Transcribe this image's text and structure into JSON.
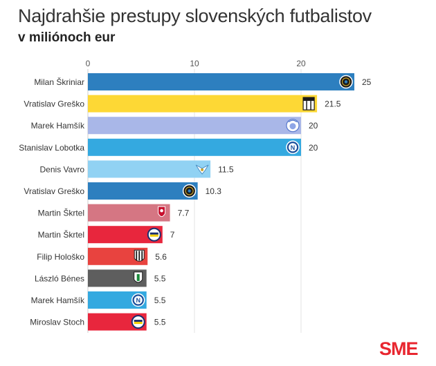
{
  "title": "Najdrahšie prestupy slovenských futbalistov",
  "subtitle": "v miliónoch eur",
  "brand": "SME",
  "chart_data": {
    "type": "bar",
    "orientation": "horizontal",
    "xlim": [
      0,
      25
    ],
    "xticks": [
      0,
      10,
      20
    ],
    "grid": true,
    "bars": [
      {
        "label": "Milan Škriniar",
        "value": 25,
        "value_label": "25",
        "color": "#2d7fbf",
        "club_icon": "inter-logo-icon"
      },
      {
        "label": "Vratislav Greško",
        "value": 21.5,
        "value_label": "21.5",
        "color": "#fdd835",
        "club_icon": "parma-logo-icon"
      },
      {
        "label": "Marek Hamšík",
        "value": 20,
        "value_label": "20",
        "color": "#a9b7e8",
        "club_icon": "brescia-logo-icon"
      },
      {
        "label": "Stanislav Lobotka",
        "value": 20,
        "value_label": "20",
        "color": "#34a9e0",
        "club_icon": "napoli-logo-icon"
      },
      {
        "label": "Denis Vavro",
        "value": 11.5,
        "value_label": "11.5",
        "color": "#91d2f3",
        "club_icon": "lazio-logo-icon"
      },
      {
        "label": "Vratislav Greško",
        "value": 10.3,
        "value_label": "10.3",
        "color": "#2d7fbf",
        "club_icon": "inter-logo-icon"
      },
      {
        "label": "Martin Škrtel",
        "value": 7.7,
        "value_label": "7.7",
        "color": "#d57683",
        "club_icon": "liverpool-logo-icon"
      },
      {
        "label": "Martin Škrtel",
        "value": 7,
        "value_label": "7",
        "color": "#e8263d",
        "club_icon": "fenerbahce-logo-icon"
      },
      {
        "label": "Filip Hološko",
        "value": 5.6,
        "value_label": "5.6",
        "color": "#e8433f",
        "club_icon": "besiktas-logo-icon"
      },
      {
        "label": "László Bénes",
        "value": 5.5,
        "value_label": "5.5",
        "color": "#5e5e5e",
        "club_icon": "gladbach-logo-icon"
      },
      {
        "label": "Marek Hamšík",
        "value": 5.5,
        "value_label": "5.5",
        "color": "#34a9e0",
        "club_icon": "napoli-logo-icon"
      },
      {
        "label": "Miroslav Stoch",
        "value": 5.5,
        "value_label": "5.5",
        "color": "#e8263d",
        "club_icon": "fenerbahce-logo-icon"
      }
    ]
  }
}
